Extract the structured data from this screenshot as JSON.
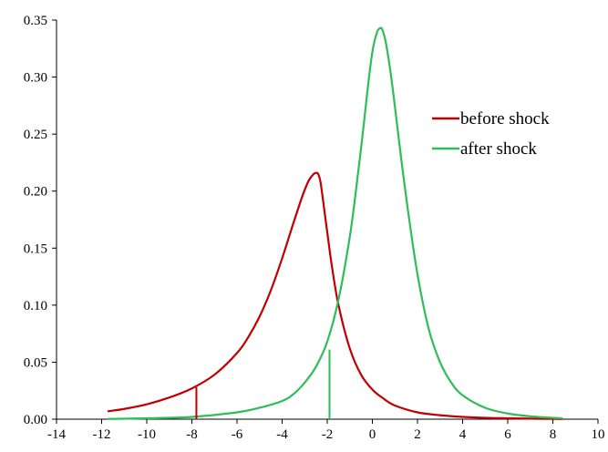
{
  "chart_data": {
    "type": "line",
    "title": "",
    "xlabel": "",
    "ylabel": "",
    "xlim": [
      -14,
      10
    ],
    "ylim": [
      0,
      0.35
    ],
    "x_ticks": [
      -14,
      -12,
      -10,
      -8,
      -6,
      -4,
      -2,
      0,
      2,
      4,
      6,
      8,
      10
    ],
    "y_ticks": [
      0.0,
      0.05,
      0.1,
      0.15,
      0.2,
      0.25,
      0.3,
      0.35
    ],
    "x_tick_labels": [
      "-14",
      "-12",
      "-10",
      "-8",
      "-6",
      "-4",
      "-2",
      "0",
      "2",
      "4",
      "6",
      "8",
      "10"
    ],
    "y_tick_labels": [
      "0.00",
      "0.05",
      "0.10",
      "0.15",
      "0.20",
      "0.25",
      "0.30",
      "0.35"
    ],
    "grid": false,
    "legend_position": "top-right",
    "series": [
      {
        "name": "before shock",
        "color": "#c00000",
        "x": [
          -11.7,
          -11.0,
          -10.0,
          -9.0,
          -8.0,
          -7.0,
          -6.0,
          -5.5,
          -5.0,
          -4.5,
          -4.0,
          -3.5,
          -3.2,
          -3.0,
          -2.8,
          -2.6,
          -2.5,
          -2.4,
          -2.3,
          -2.2,
          -2.0,
          -1.8,
          -1.5,
          -1.0,
          -0.5,
          0.0,
          0.5,
          1.0,
          2.0,
          3.0,
          4.0,
          5.0,
          6.0,
          7.0,
          8.0,
          8.4
        ],
        "y": [
          0.007,
          0.009,
          0.013,
          0.019,
          0.027,
          0.039,
          0.058,
          0.072,
          0.09,
          0.113,
          0.141,
          0.172,
          0.19,
          0.201,
          0.21,
          0.215,
          0.216,
          0.215,
          0.208,
          0.194,
          0.164,
          0.135,
          0.1,
          0.062,
          0.039,
          0.026,
          0.018,
          0.012,
          0.006,
          0.0035,
          0.002,
          0.0012,
          0.0008,
          0.0005,
          0.0003,
          0.0002
        ]
      },
      {
        "name": "after shock",
        "color": "#2ebd59",
        "x": [
          -11.7,
          -10.0,
          -8.0,
          -6.0,
          -5.0,
          -4.0,
          -3.5,
          -3.0,
          -2.5,
          -2.0,
          -1.5,
          -1.0,
          -0.7,
          -0.4,
          -0.2,
          0.0,
          0.2,
          0.35,
          0.45,
          0.6,
          0.8,
          1.0,
          1.3,
          1.6,
          2.0,
          2.5,
          3.0,
          3.5,
          4.0,
          5.0,
          6.0,
          7.0,
          8.0,
          8.4
        ],
        "y": [
          0.0002,
          0.0008,
          0.002,
          0.006,
          0.01,
          0.016,
          0.022,
          0.032,
          0.046,
          0.068,
          0.105,
          0.16,
          0.205,
          0.255,
          0.291,
          0.322,
          0.339,
          0.343,
          0.341,
          0.33,
          0.305,
          0.274,
          0.225,
          0.18,
          0.127,
          0.079,
          0.05,
          0.032,
          0.021,
          0.01,
          0.005,
          0.0025,
          0.0012,
          0.0008
        ]
      }
    ],
    "markers": [
      {
        "series": "before shock",
        "x": -7.8,
        "y": 0.028,
        "color": "#c00000"
      },
      {
        "series": "after shock",
        "x": -1.9,
        "y": 0.061,
        "color": "#2ebd59"
      }
    ]
  }
}
